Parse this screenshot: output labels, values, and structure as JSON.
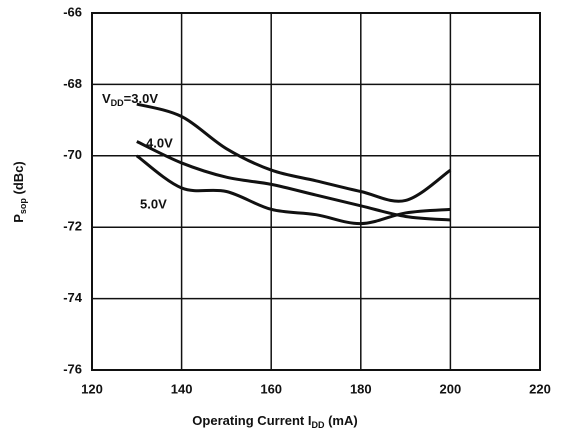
{
  "chart_data": {
    "type": "line",
    "x_label": {
      "main": "Operating Current  I",
      "sub": "DD",
      "tail": " (mA)"
    },
    "y_label": {
      "main": "P",
      "sub": "sop",
      "tail": " (dBc)"
    },
    "x": [
      130,
      140,
      150,
      160,
      170,
      180,
      190,
      200
    ],
    "series": [
      {
        "name": "3.0V",
        "prefix": {
          "main": "V",
          "sub": "DD",
          "tail": "="
        },
        "color": "#111111",
        "values": [
          -68.55,
          -68.9,
          -69.8,
          -70.4,
          -70.7,
          -71.0,
          -71.25,
          -70.4
        ]
      },
      {
        "name": "4.0V",
        "color": "#111111",
        "values": [
          -69.6,
          -70.2,
          -70.6,
          -70.8,
          -71.1,
          -71.4,
          -71.7,
          -71.8
        ]
      },
      {
        "name": "5.0V",
        "color": "#111111",
        "values": [
          -70.0,
          -70.9,
          -71.0,
          -71.5,
          -71.65,
          -71.9,
          -71.6,
          -71.5
        ]
      }
    ],
    "xlim": [
      120,
      220
    ],
    "xticks": [
      120,
      140,
      160,
      180,
      200,
      220
    ],
    "ylim": [
      -76,
      -66
    ],
    "yticks": [
      -76,
      -74,
      -72,
      -70,
      -68,
      -66
    ],
    "grid": true
  }
}
